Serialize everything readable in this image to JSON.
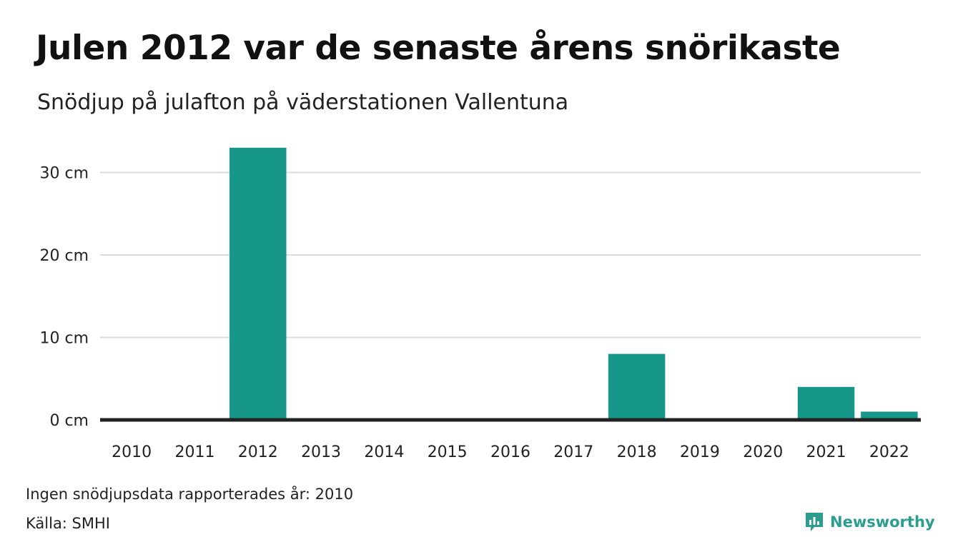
{
  "colors": {
    "bar": "#17968a",
    "grid": "#dcdcdc",
    "baseline": "#222222",
    "brand": "#2a9d8f"
  },
  "chart_data": {
    "type": "bar",
    "title": "Julen 2012 var de senaste årens snörikaste",
    "subtitle": "Snödjup på julafton på väderstationen Vallentuna",
    "categories": [
      "2010",
      "2011",
      "2012",
      "2013",
      "2014",
      "2015",
      "2016",
      "2017",
      "2018",
      "2019",
      "2020",
      "2021",
      "2022"
    ],
    "values": [
      null,
      0,
      33,
      0,
      0,
      0,
      0,
      0,
      8,
      0,
      0,
      4,
      1
    ],
    "ylim": [
      0,
      34
    ],
    "yticks": [
      0,
      10,
      20,
      30
    ],
    "ytick_labels": [
      "0 cm",
      "10 cm",
      "20 cm",
      "30 cm"
    ],
    "grid": true
  },
  "footer": {
    "note": "Ingen snödjupsdata rapporterades år: 2010",
    "source": "Källa: SMHI",
    "brand": "Newsworthy",
    "brand_icon": "newsworthy-logo-icon"
  }
}
